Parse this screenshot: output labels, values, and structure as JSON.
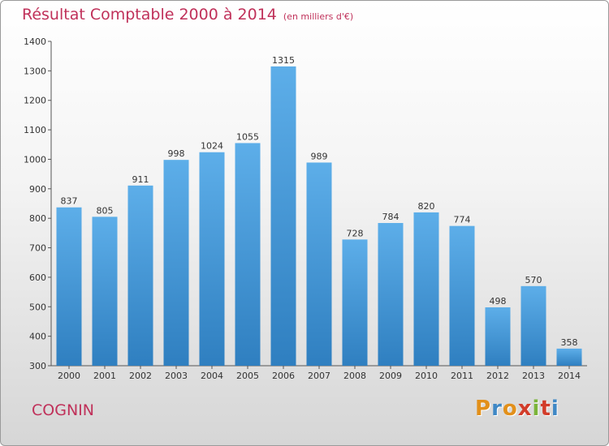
{
  "header": {
    "title": "Résultat Comptable 2000 à 2014",
    "subtitle": "(en milliers d'€)"
  },
  "footer": {
    "commune": "COGNIN",
    "logo_letters": [
      "P",
      "r",
      "o",
      "x",
      "i",
      "t",
      "i"
    ],
    "logo_colors": [
      "#e2901b",
      "#3f88c5",
      "#e2901b",
      "#d23c2a",
      "#7bb43a",
      "#d23c2a",
      "#3f88c5"
    ]
  },
  "colors": {
    "bar_top": "#5daee9",
    "bar_bottom": "#2f7fc0",
    "title": "#c0315a"
  },
  "chart_data": {
    "type": "bar",
    "categories": [
      "2000",
      "2001",
      "2002",
      "2003",
      "2004",
      "2005",
      "2006",
      "2007",
      "2008",
      "2009",
      "2010",
      "2011",
      "2012",
      "2013",
      "2014"
    ],
    "values": [
      837,
      805,
      911,
      998,
      1024,
      1055,
      1315,
      989,
      728,
      784,
      820,
      774,
      498,
      570,
      358
    ],
    "title": "Résultat Comptable 2000 à 2014",
    "xlabel": "",
    "ylabel": "",
    "ylim": [
      300,
      1400
    ],
    "yticks": [
      300,
      400,
      500,
      600,
      700,
      800,
      900,
      1000,
      1100,
      1200,
      1300,
      1400
    ],
    "grid": false
  }
}
